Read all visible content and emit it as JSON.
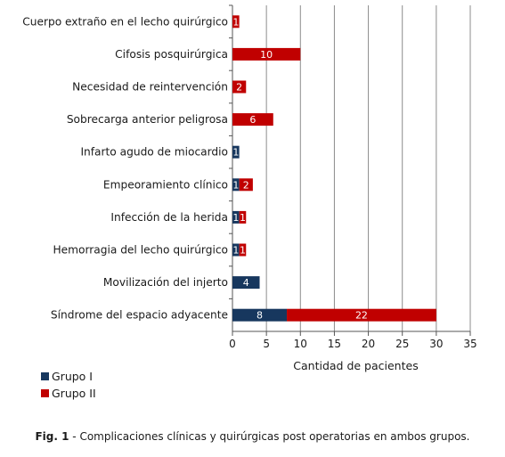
{
  "chart_data": {
    "type": "bar",
    "orientation": "horizontal",
    "stacked": true,
    "categories": [
      "Cuerpo extraño en el lecho quirúrgico",
      "Cifosis posquirúrgica",
      "Necesidad de reintervención",
      "Sobrecarga anterior peligrosa",
      "Infarto agudo de miocardio",
      "Empeoramiento clínico",
      "Infección de la herida",
      "Hemorragia del lecho quirúrgico",
      "Movilización del injerto",
      "Síndrome del espacio adyacente"
    ],
    "series": [
      {
        "name": "Grupo I",
        "color": "#17375e",
        "values": [
          0,
          0,
          0,
          0,
          1,
          1,
          1,
          1,
          4,
          8
        ]
      },
      {
        "name": "Grupo II",
        "color": "#c00000",
        "values": [
          1,
          10,
          2,
          6,
          0,
          2,
          1,
          1,
          0,
          22
        ]
      }
    ],
    "xlabel": "Cantidad de pacientes",
    "xlim": [
      0,
      35
    ],
    "xticks": [
      0,
      5,
      10,
      15,
      20,
      25,
      30,
      35
    ],
    "grid": "vertical",
    "legend_position": "bottom-left"
  },
  "caption": {
    "label": "Fig. 1",
    "text": " - Complicaciones clínicas y quirúrgicas post operatorias en ambos grupos."
  }
}
